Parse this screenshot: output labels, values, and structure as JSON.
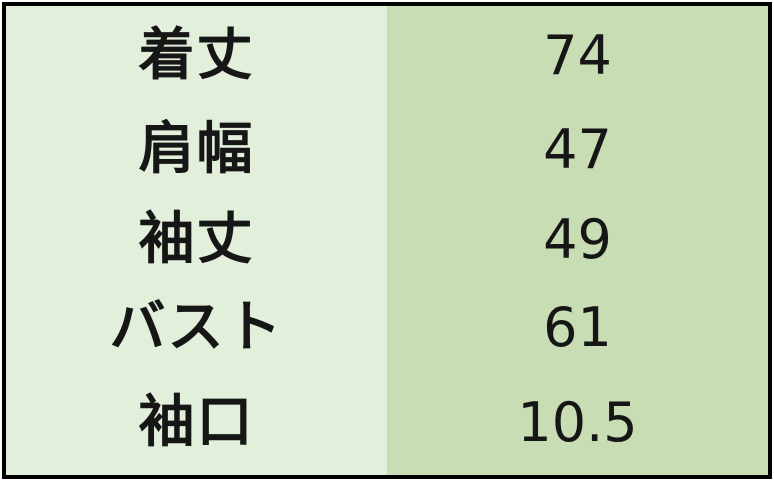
{
  "table": {
    "rows": [
      {
        "label": "着丈",
        "value": "74"
      },
      {
        "label": "肩幅",
        "value": "47"
      },
      {
        "label": "袖丈",
        "value": "49"
      },
      {
        "label": "バスト",
        "value": "61"
      },
      {
        "label": "袖口",
        "value": "10.5"
      }
    ]
  },
  "chart_data": {
    "type": "table",
    "title": "",
    "categories": [
      "着丈",
      "肩幅",
      "袖丈",
      "バスト",
      "袖口"
    ],
    "values": [
      74,
      47,
      49,
      61,
      10.5
    ],
    "legend_position": "none",
    "grid": false
  },
  "colors": {
    "label_col_bg": "#e2efdb",
    "value_col_bg": "#c8ddb4",
    "border": "#000000",
    "text": "#161616"
  }
}
